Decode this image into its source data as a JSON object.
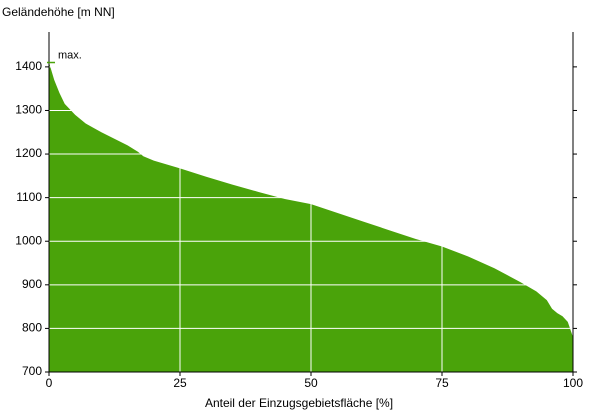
{
  "chart_data": {
    "type": "area",
    "y_axis_label": "Geländehöhe [m NN]",
    "x_axis_label": "Anteil der Einzugsgebietsfläche [%]",
    "annotation": "max.",
    "color": "#4aa30a",
    "x": [
      0,
      1,
      2,
      3,
      5,
      7,
      10,
      15,
      17,
      18,
      20,
      25,
      30,
      35,
      40,
      45,
      50,
      55,
      60,
      65,
      70,
      75,
      80,
      85,
      90,
      93,
      95,
      96,
      97,
      98,
      99,
      100
    ],
    "values": [
      1410,
      1370,
      1340,
      1315,
      1290,
      1270,
      1250,
      1220,
      1205,
      1195,
      1185,
      1167,
      1148,
      1130,
      1113,
      1097,
      1085,
      1065,
      1045,
      1025,
      1005,
      988,
      965,
      938,
      906,
      885,
      865,
      845,
      835,
      828,
      815,
      780
    ],
    "xlim": [
      0,
      100
    ],
    "xticks": [
      0,
      25,
      50,
      75,
      100
    ],
    "ylim": [
      700,
      1480
    ],
    "yticks": [
      700,
      800,
      900,
      1000,
      1100,
      1200,
      1300,
      1400
    ],
    "grid": true
  }
}
